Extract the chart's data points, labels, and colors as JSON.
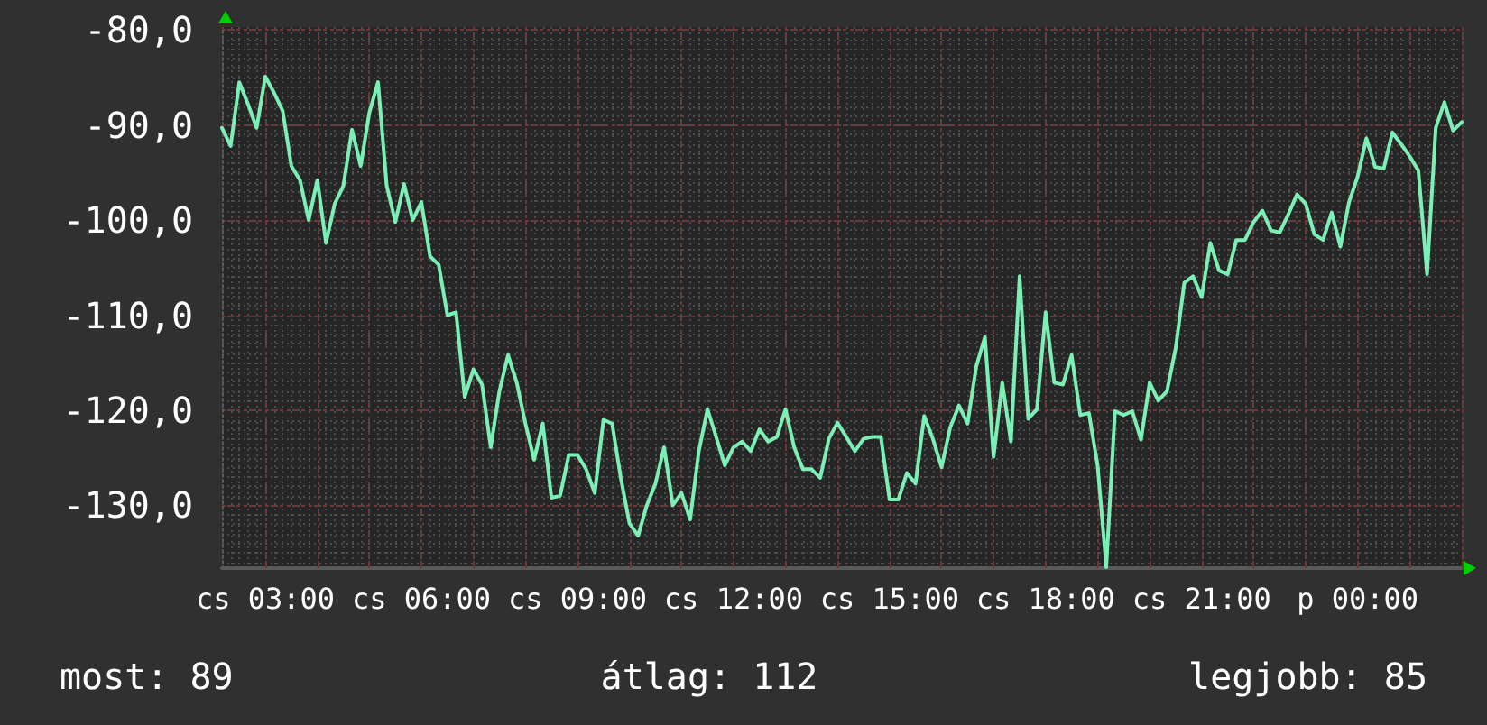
{
  "chart_data": {
    "type": "line",
    "color": "#7cefb6",
    "marker": "none",
    "grid": true,
    "ylim": [
      -136.6,
      -79.7
    ],
    "yticks": [
      {
        "value": -80,
        "label": "-80,0"
      },
      {
        "value": -90,
        "label": "-90,0"
      },
      {
        "value": -100,
        "label": "-100,0"
      },
      {
        "value": -110,
        "label": "-110,0"
      },
      {
        "value": -120,
        "label": "-120,0"
      },
      {
        "value": -130,
        "label": "-130,0"
      }
    ],
    "annotations": [
      "most: 89",
      "átlag: 112",
      "legjobb: 85"
    ],
    "categories": [
      null,
      null,
      null,
      null,
      null,
      "cs 03:00",
      null,
      null,
      null,
      null,
      null,
      null,
      null,
      null,
      null,
      null,
      null,
      null,
      null,
      null,
      null,
      null,
      null,
      "cs 06:00",
      null,
      null,
      null,
      null,
      null,
      null,
      null,
      null,
      null,
      null,
      null,
      null,
      null,
      null,
      null,
      null,
      null,
      "cs 09:00",
      null,
      null,
      null,
      null,
      null,
      null,
      null,
      null,
      null,
      null,
      null,
      null,
      null,
      null,
      null,
      null,
      null,
      "cs 12:00",
      null,
      null,
      null,
      null,
      null,
      null,
      null,
      null,
      null,
      null,
      null,
      null,
      null,
      null,
      null,
      null,
      null,
      "cs 15:00",
      null,
      null,
      null,
      null,
      null,
      null,
      null,
      null,
      null,
      null,
      null,
      null,
      null,
      null,
      null,
      null,
      null,
      "cs 18:00",
      null,
      null,
      null,
      null,
      null,
      null,
      null,
      null,
      null,
      null,
      null,
      null,
      null,
      null,
      null,
      null,
      null,
      "cs 21:00",
      null,
      null,
      null,
      null,
      null,
      null,
      null,
      null,
      null,
      null,
      null,
      null,
      null,
      null,
      null,
      null,
      null,
      "p 00:00",
      null,
      null,
      null,
      null,
      null,
      null,
      null,
      null,
      null,
      null,
      null,
      null
    ],
    "values": [
      -90.3,
      -92.2,
      -85.5,
      -87.8,
      -90.3,
      -84.9,
      -86.6,
      -88.5,
      -94.3,
      -95.8,
      -100,
      -95.8,
      -102.4,
      -98.3,
      -96.4,
      -90.5,
      -94.3,
      -88.7,
      -85.5,
      -96.4,
      -100.2,
      -96.2,
      -100,
      -98.1,
      -103.8,
      -104.7,
      -110,
      -109.7,
      -118.6,
      -115.7,
      -117.3,
      -123.9,
      -118,
      -114.2,
      -117.1,
      -121.4,
      -125.2,
      -121.4,
      -129.2,
      -129,
      -124.7,
      -124.7,
      -126.2,
      -128.7,
      -121,
      -121.4,
      -127.1,
      -131.9,
      -133.2,
      -130,
      -127.7,
      -123.9,
      -130,
      -128.7,
      -131.5,
      -124.3,
      -119.9,
      -122.8,
      -125.8,
      -123.9,
      -123.3,
      -124.3,
      -122,
      -123.3,
      -122.8,
      -119.9,
      -123.9,
      -126.2,
      -126.2,
      -127.1,
      -123,
      -121.3,
      -122.8,
      -124.3,
      -123,
      -122.8,
      -122.8,
      -129.4,
      -129.4,
      -126.6,
      -127.7,
      -120.6,
      -123,
      -126,
      -121.8,
      -119.5,
      -121.4,
      -115.4,
      -112.3,
      -124.9,
      -117.1,
      -123.3,
      -105.9,
      -120.9,
      -119.9,
      -109.7,
      -117.1,
      -117.3,
      -114.2,
      -120.5,
      -120.3,
      -125.8,
      -136.5,
      -120.1,
      -120.5,
      -120.1,
      -123.1,
      -117.1,
      -119,
      -118,
      -113.5,
      -106.6,
      -105.9,
      -108.1,
      -102.4,
      -105.3,
      -105.7,
      -102.1,
      -102.1,
      -100.2,
      -99,
      -101.1,
      -101.3,
      -99.4,
      -97.3,
      -98.3,
      -101.5,
      -102.1,
      -99.2,
      -102.8,
      -98.1,
      -95.4,
      -91.4,
      -94.4,
      -94.6,
      -90.8,
      -92,
      -93.3,
      -94.8,
      -105.7,
      -90.3,
      -87.6,
      -90.6,
      -89.7
    ]
  }
}
